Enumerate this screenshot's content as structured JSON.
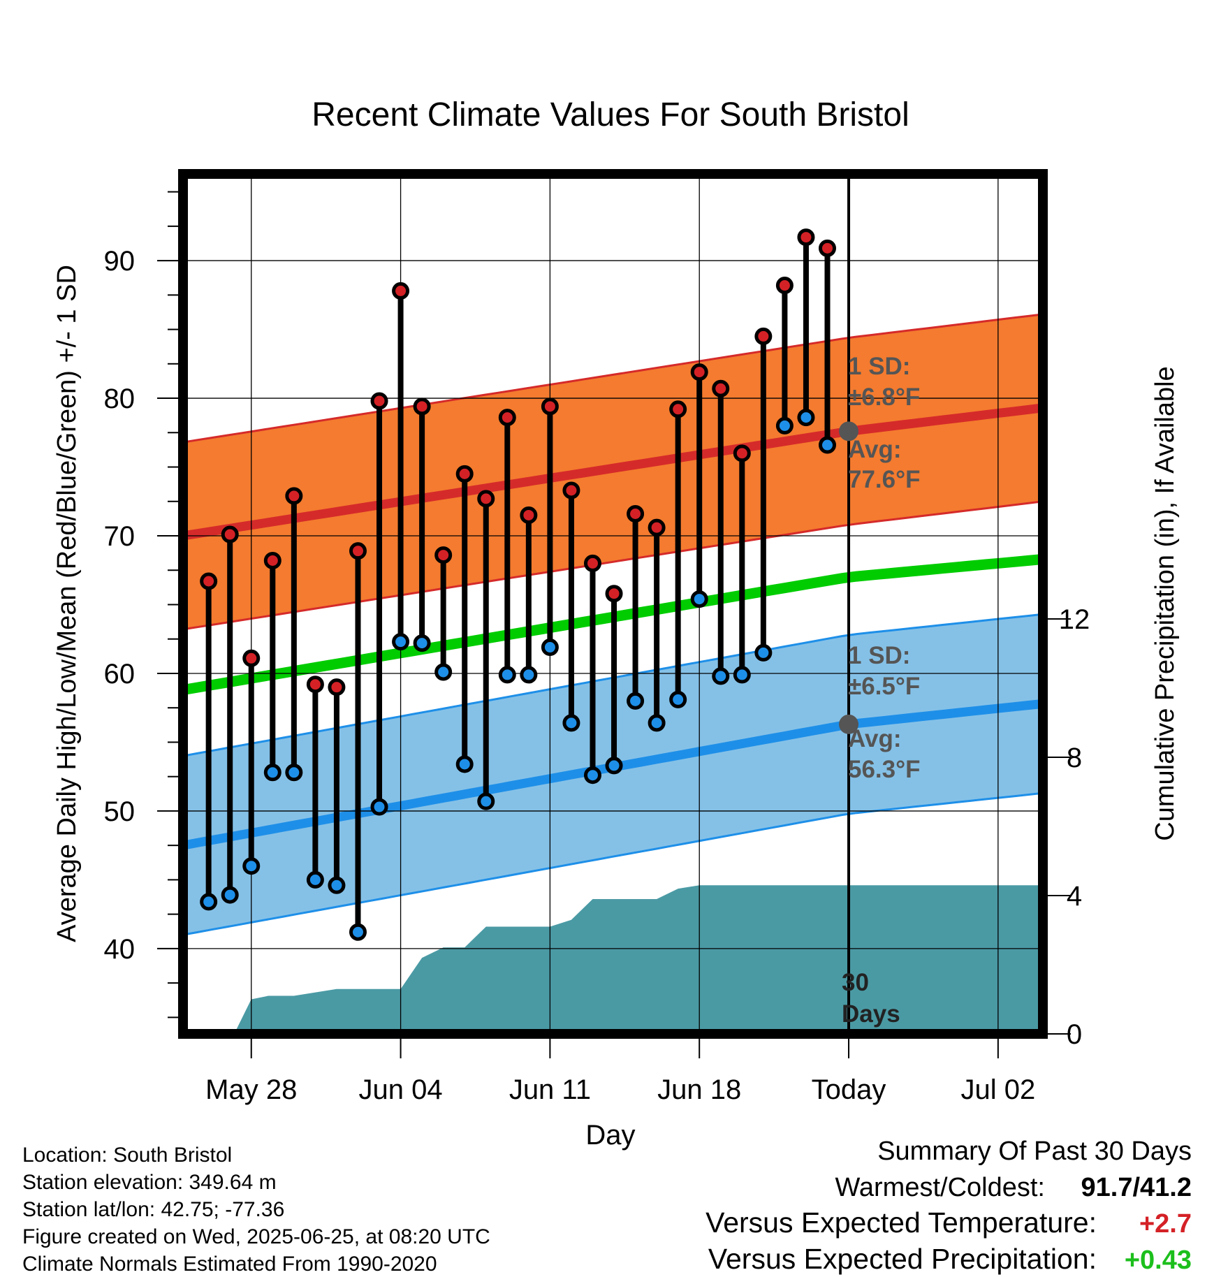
{
  "chart_data": {
    "type": "line",
    "title": "Recent Climate Values For South Bristol",
    "xlabel": "Day",
    "ylabel": "Average Daily High/Low/Mean (Red/Blue/Green) +/- 1 SD",
    "y2label": "Cumulative Precipitation (in), If Available",
    "ylim": [
      33.8,
      96.3
    ],
    "y2lim": [
      0,
      18.6
    ],
    "xlim": [
      -3.2,
      37.1
    ],
    "x_ticks": [
      {
        "x": 0,
        "label": "May 28"
      },
      {
        "x": 7,
        "label": "Jun 04"
      },
      {
        "x": 14,
        "label": "Jun 11"
      },
      {
        "x": 21,
        "label": "Jun 18"
      },
      {
        "x": 28,
        "label": "Today"
      },
      {
        "x": 35,
        "label": "Jul 02"
      }
    ],
    "y_ticks": [
      "40",
      "50",
      "60",
      "70",
      "80",
      "90"
    ],
    "y2_ticks": [
      "0",
      "4",
      "8",
      "12"
    ],
    "grid": true,
    "colors": {
      "high_dot": "#d42126",
      "low_dot": "#1e8fe8",
      "high_band": "#f47b2f",
      "low_band": "#85c1e7",
      "high_avg_line": "#d52a2a",
      "low_avg_line": "#1e8fe8",
      "band_edge_high": "#d52a2a",
      "band_edge_low": "#1e8fe8",
      "mean_line": "#00cc00",
      "precip": "#4a9aa4",
      "annotation": "#555555",
      "today_marker": "#555555"
    },
    "days": [
      -2,
      -1,
      0,
      1,
      2,
      3,
      4,
      5,
      6,
      7,
      8,
      9,
      10,
      11,
      12,
      13,
      14,
      15,
      16,
      17,
      18,
      19,
      20,
      21,
      22,
      23,
      24,
      25,
      26,
      27
    ],
    "daily_high": [
      66.7,
      70.1,
      61.1,
      68.2,
      72.9,
      59.2,
      59.0,
      68.9,
      79.8,
      87.8,
      79.4,
      68.6,
      74.5,
      72.7,
      78.6,
      71.5,
      79.4,
      73.3,
      68.0,
      65.8,
      71.6,
      70.6,
      79.2,
      81.9,
      80.7,
      76.0,
      84.5,
      88.2,
      91.7,
      90.9
    ],
    "daily_low": [
      43.4,
      43.9,
      46.0,
      52.8,
      52.8,
      45.0,
      44.6,
      41.2,
      50.3,
      62.3,
      62.2,
      60.1,
      53.4,
      50.7,
      59.9,
      59.9,
      61.9,
      56.4,
      52.6,
      53.3,
      58.0,
      56.4,
      58.1,
      65.4,
      59.8,
      59.9,
      61.5,
      78.0,
      78.6,
      76.6
    ],
    "normal_high_x": [
      -3.2,
      28,
      37.1
    ],
    "normal_high_avg": [
      70.0,
      77.6,
      79.3
    ],
    "normal_high_sd": 6.8,
    "normal_low_x": [
      -3.2,
      28,
      37.1
    ],
    "normal_low_avg": [
      47.5,
      56.3,
      57.8
    ],
    "normal_low_sd": 6.5,
    "normal_mean_x": [
      -3.2,
      28,
      37.1
    ],
    "normal_mean": [
      58.8,
      67.0,
      68.3
    ],
    "precip_x": [
      -0.8,
      0,
      0.8,
      2,
      3,
      4,
      6,
      7,
      8,
      9,
      10,
      11,
      12,
      13,
      14,
      15,
      16,
      17,
      18,
      19,
      20,
      21,
      22,
      37.1
    ],
    "precip_cum": [
      0,
      1.0,
      1.1,
      1.1,
      1.2,
      1.3,
      1.3,
      1.3,
      2.2,
      2.5,
      2.5,
      3.1,
      3.1,
      3.1,
      3.1,
      3.3,
      3.9,
      3.9,
      3.9,
      3.9,
      4.2,
      4.3,
      4.3,
      4.3
    ],
    "today_x": 28,
    "annotations": {
      "high_sd_label": "1 SD:",
      "high_sd_value": "±6.8°F",
      "high_avg_label": "Avg:",
      "high_avg_value": "77.6°F",
      "low_sd_label": "1 SD:",
      "low_sd_value": "±6.5°F",
      "low_avg_label": "Avg:",
      "low_avg_value": "56.3°F",
      "days_num": "30",
      "days_word": "Days"
    }
  },
  "info": {
    "location": "Location: South Bristol",
    "elevation": "Station elevation: 349.64 m",
    "latlon": "Station lat/lon: 42.75; -77.36",
    "created": "Figure created on Wed, 2025-06-25, at 08:20 UTC",
    "normals": "Climate Normals Estimated From 1990-2020"
  },
  "summary": {
    "title": "Summary Of Past 30 Days",
    "warm_cold_label": "Warmest/Coldest:",
    "warm_cold_value": "91.7/41.2",
    "temp_label": "Versus Expected Temperature:",
    "temp_value": "+2.7",
    "temp_color": "#d42126",
    "precip_label": "Versus Expected Precipitation:",
    "precip_value": "+0.43",
    "precip_color": "#1cbf1c"
  }
}
